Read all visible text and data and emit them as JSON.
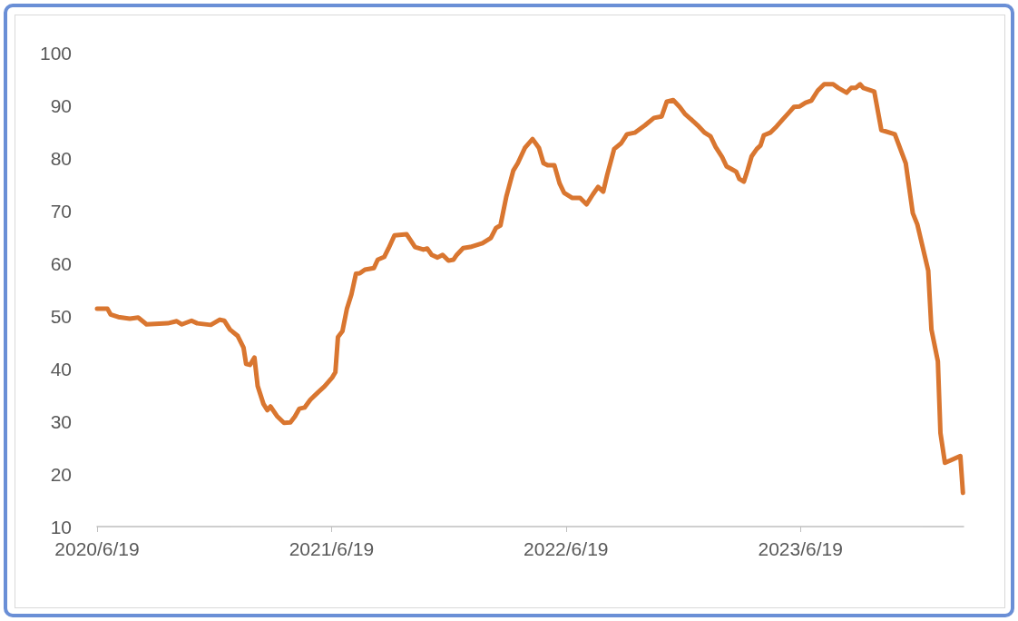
{
  "chart_data": {
    "type": "line",
    "color": "#d97630",
    "grid": false,
    "marker": "none",
    "line_style": "solid",
    "xlim": [
      "2020-06-19",
      "2024-02-28"
    ],
    "xticks": [
      {
        "value": "2020-06-19",
        "label": "2020/6/19"
      },
      {
        "value": "2021-06-19",
        "label": "2021/6/19"
      },
      {
        "value": "2022-06-19",
        "label": "2022/6/19"
      },
      {
        "value": "2023-06-19",
        "label": "2023/6/19"
      }
    ],
    "ylim": [
      10,
      100
    ],
    "yticks": [
      10,
      20,
      30,
      40,
      50,
      60,
      70,
      80,
      90,
      100
    ],
    "x": [
      "2020-06-19",
      "2020-07-05",
      "2020-07-10",
      "2020-07-22",
      "2020-08-09",
      "2020-08-22",
      "2020-09-04",
      "2020-10-07",
      "2020-10-21",
      "2020-10-29",
      "2020-11-13",
      "2020-11-22",
      "2020-12-13",
      "2020-12-27",
      "2021-01-03",
      "2021-01-12",
      "2021-01-24",
      "2021-02-02",
      "2021-02-06",
      "2021-02-12",
      "2021-02-19",
      "2021-02-24",
      "2021-03-05",
      "2021-03-11",
      "2021-03-16",
      "2021-03-26",
      "2021-04-06",
      "2021-04-16",
      "2021-04-23",
      "2021-04-30",
      "2021-05-08",
      "2021-05-17",
      "2021-05-29",
      "2021-06-08",
      "2021-06-20",
      "2021-06-25",
      "2021-06-29",
      "2021-07-06",
      "2021-07-13",
      "2021-07-20",
      "2021-07-27",
      "2021-08-02",
      "2021-08-10",
      "2021-08-24",
      "2021-08-30",
      "2021-09-09",
      "2021-09-16",
      "2021-09-25",
      "2021-10-14",
      "2021-10-27",
      "2021-11-09",
      "2021-11-15",
      "2021-11-22",
      "2021-12-01",
      "2021-12-09",
      "2021-12-18",
      "2021-12-26",
      "2021-12-31",
      "2022-01-10",
      "2022-01-21",
      "2022-02-09",
      "2022-02-22",
      "2022-03-02",
      "2022-03-09",
      "2022-03-18",
      "2022-03-29",
      "2022-04-05",
      "2022-04-16",
      "2022-04-28",
      "2022-05-08",
      "2022-05-15",
      "2022-05-22",
      "2022-06-01",
      "2022-06-09",
      "2022-06-16",
      "2022-06-29",
      "2022-07-11",
      "2022-07-21",
      "2022-07-31",
      "2022-08-08",
      "2022-08-16",
      "2022-08-22",
      "2022-09-02",
      "2022-09-13",
      "2022-09-22",
      "2022-10-04",
      "2022-10-20",
      "2022-11-03",
      "2022-11-15",
      "2022-11-23",
      "2022-12-03",
      "2022-12-13",
      "2022-12-21",
      "2023-01-02",
      "2023-01-10",
      "2023-01-21",
      "2023-01-30",
      "2023-02-07",
      "2023-02-17",
      "2023-02-24",
      "2023-03-05",
      "2023-03-11",
      "2023-03-16",
      "2023-03-23",
      "2023-03-29",
      "2023-04-04",
      "2023-04-12",
      "2023-04-18",
      "2023-04-23",
      "2023-05-03",
      "2023-05-13",
      "2023-05-23",
      "2023-06-01",
      "2023-06-09",
      "2023-06-18",
      "2023-06-27",
      "2023-07-06",
      "2023-07-16",
      "2023-07-26",
      "2023-08-09",
      "2023-08-17",
      "2023-08-30",
      "2023-09-06",
      "2023-09-13",
      "2023-09-20",
      "2023-09-25",
      "2023-10-12",
      "2023-10-23",
      "2023-11-13",
      "2023-11-30",
      "2023-12-11",
      "2023-12-18",
      "2024-01-04",
      "2024-01-09",
      "2024-01-19",
      "2024-01-23",
      "2024-01-30",
      "2024-02-23",
      "2024-02-27"
    ],
    "values": [
      51.4,
      51.4,
      50.3,
      49.8,
      49.5,
      49.7,
      48.4,
      48.6,
      49.0,
      48.4,
      49.1,
      48.6,
      48.3,
      49.3,
      49.1,
      47.4,
      46.2,
      44.0,
      40.9,
      40.7,
      42.1,
      36.7,
      33.3,
      32.1,
      32.8,
      31.0,
      29.7,
      29.8,
      30.9,
      32.4,
      32.6,
      34.1,
      35.5,
      36.6,
      38.3,
      39.3,
      46.0,
      47.1,
      51.4,
      54.1,
      58.0,
      58.1,
      58.8,
      59.1,
      60.7,
      61.2,
      62.9,
      65.3,
      65.5,
      63.1,
      62.6,
      62.8,
      61.6,
      61.1,
      61.6,
      60.5,
      60.7,
      61.6,
      62.9,
      63.1,
      63.8,
      64.8,
      66.7,
      67.2,
      72.6,
      77.6,
      79.0,
      81.9,
      83.6,
      81.9,
      79.0,
      78.6,
      78.6,
      75.2,
      73.4,
      72.4,
      72.4,
      71.2,
      73.1,
      74.5,
      73.6,
      76.7,
      81.7,
      82.8,
      84.5,
      84.8,
      86.2,
      87.6,
      87.9,
      90.7,
      91.0,
      89.7,
      88.4,
      87.1,
      86.2,
      84.8,
      84.1,
      82.1,
      80.2,
      78.4,
      77.8,
      77.4,
      76.0,
      75.5,
      77.8,
      80.3,
      81.7,
      82.4,
      84.3,
      84.8,
      86.0,
      87.4,
      88.6,
      89.7,
      89.8,
      90.5,
      90.9,
      92.8,
      94.0,
      94.0,
      93.3,
      92.4,
      93.3,
      93.3,
      94.0,
      93.3,
      92.6,
      85.3,
      84.5,
      79.0,
      69.5,
      67.4,
      58.6,
      47.4,
      41.4,
      27.8,
      22.1,
      23.4,
      16.4
    ]
  }
}
